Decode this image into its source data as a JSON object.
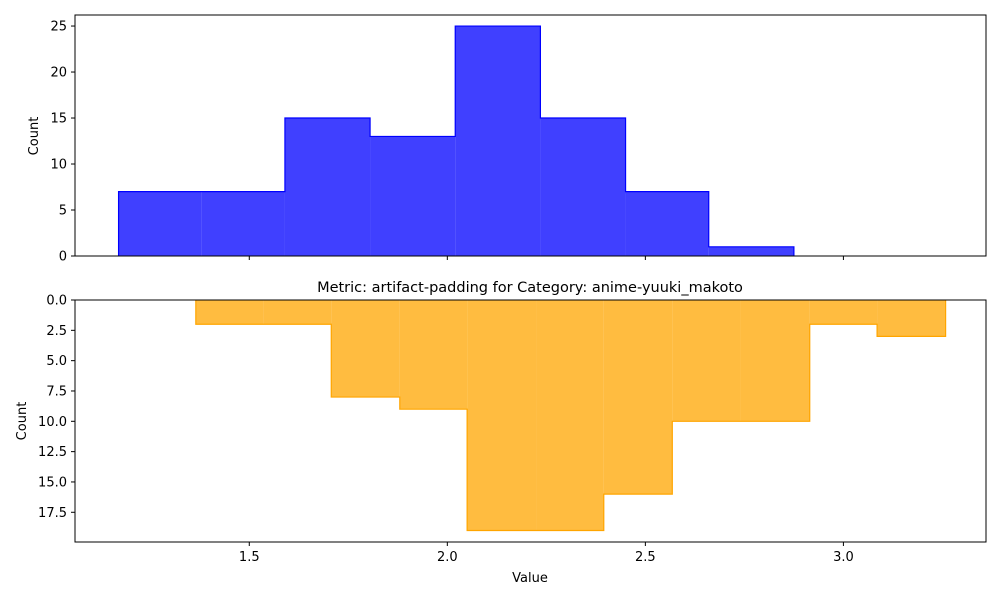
{
  "chart_data": [
    {
      "type": "histogram",
      "title": "",
      "xlabel": "",
      "ylabel": "Count",
      "xlim": [
        1.06,
        3.36
      ],
      "ylim": [
        0,
        26.2
      ],
      "inverted_y": false,
      "color": "#0000ff",
      "bin_edges": [
        1.17,
        1.38,
        1.59,
        1.805,
        2.02,
        2.235,
        2.45,
        2.66,
        2.875
      ],
      "counts": [
        7,
        7,
        15,
        13,
        25,
        15,
        7,
        1
      ],
      "yticks": [
        0,
        5,
        10,
        15,
        20,
        25
      ],
      "ytick_labels": [
        "0",
        "5",
        "10",
        "15",
        "20",
        "25"
      ],
      "grid": false
    },
    {
      "type": "histogram",
      "title": "Metric: artifact-padding for Category: anime-yuuki_makoto",
      "xlabel": "Value",
      "ylabel": "Count",
      "xlim": [
        1.06,
        3.36
      ],
      "ylim": [
        0,
        19.95
      ],
      "inverted_y": true,
      "color": "#ffa500",
      "bin_edges": [
        1.365,
        1.535,
        1.707,
        1.88,
        2.05,
        2.225,
        2.395,
        2.568,
        2.74,
        2.915,
        3.085,
        3.258
      ],
      "counts": [
        2,
        2,
        8,
        9,
        19,
        19,
        16,
        10,
        10,
        2,
        3
      ],
      "yticks": [
        0,
        2.5,
        5,
        7.5,
        10,
        12.5,
        15,
        17.5
      ],
      "ytick_labels": [
        "0.0",
        "2.5",
        "5.0",
        "7.5",
        "10.0",
        "12.5",
        "15.0",
        "17.5"
      ],
      "xticks": [
        1.5,
        2.0,
        2.5,
        3.0
      ],
      "xtick_labels": [
        "1.5",
        "2.0",
        "2.5",
        "3.0"
      ],
      "grid": false
    }
  ]
}
